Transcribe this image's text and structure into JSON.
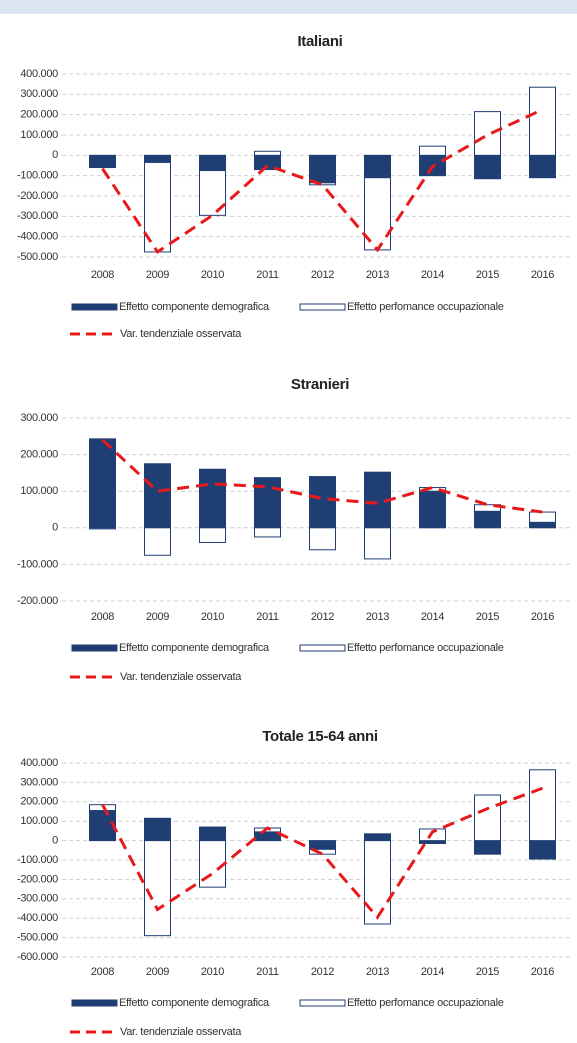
{
  "chart_data": [
    {
      "type": "bar",
      "title": "Italiani",
      "categories": [
        "2008",
        "2009",
        "2010",
        "2011",
        "2012",
        "2013",
        "2014",
        "2015",
        "2016"
      ],
      "series": [
        {
          "name": "Effetto componente demografica",
          "type": "bar",
          "color": "#1f3f74",
          "values": [
            -60000,
            -35000,
            -75000,
            -70000,
            -135000,
            -110000,
            -100000,
            -115000,
            -110000
          ]
        },
        {
          "name": "Effetto perfomance occupazionale",
          "type": "bar",
          "color": "#ffffff",
          "values": [
            0,
            -440000,
            -220000,
            20000,
            -10000,
            -355000,
            45000,
            215000,
            335000
          ]
        },
        {
          "name": "Var. tendenziale osservata",
          "type": "line",
          "color": "#e8191b",
          "values": [
            -65000,
            -475000,
            -295000,
            -50000,
            -145000,
            -465000,
            -55000,
            100000,
            225000
          ]
        }
      ],
      "ylim": [
        -500000,
        400000
      ],
      "yticks": [
        {
          "value": -500000,
          "label": "-500.000"
        },
        {
          "value": -400000,
          "label": "-400.000"
        },
        {
          "value": -300000,
          "label": "-300.000"
        },
        {
          "value": -200000,
          "label": "-200.000"
        },
        {
          "value": -100000,
          "label": "-100.000"
        },
        0,
        {
          "value": 100000,
          "label": "100.000"
        },
        {
          "value": 200000,
          "label": "200.000"
        },
        {
          "value": 300000,
          "label": "300.000"
        },
        {
          "value": 400000,
          "label": "400.000"
        }
      ],
      "grid": true
    },
    {
      "type": "bar",
      "title": "Stranieri",
      "categories": [
        "2008",
        "2009",
        "2010",
        "2011",
        "2012",
        "2013",
        "2014",
        "2015",
        "2016"
      ],
      "series": [
        {
          "name": "Effetto componente demografica",
          "type": "bar",
          "color": "#1f3f74",
          "values": [
            243000,
            175000,
            160000,
            137000,
            140000,
            152000,
            100000,
            45000,
            15000
          ]
        },
        {
          "name": "Effetto perfomance occupazionale",
          "type": "bar",
          "color": "#ffffff",
          "values": [
            -3000,
            -75000,
            -40000,
            -25000,
            -60000,
            -85000,
            10000,
            18000,
            28000
          ]
        },
        {
          "name": "Var. tendenziale osservata",
          "type": "line",
          "color": "#e8191b",
          "values": [
            240000,
            100000,
            120000,
            112000,
            80000,
            67000,
            110000,
            63000,
            43000
          ]
        }
      ],
      "ylim": [
        -200000,
        300000
      ],
      "yticks": [
        {
          "value": -200000,
          "label": "-200.000"
        },
        {
          "value": -100000,
          "label": "-100.000"
        },
        0,
        {
          "value": 100000,
          "label": "100.000"
        },
        {
          "value": 200000,
          "label": "200.000"
        },
        {
          "value": 300000,
          "label": "300.000"
        }
      ],
      "grid": true
    },
    {
      "type": "bar",
      "title": "Totale 15-64 anni",
      "categories": [
        "2008",
        "2009",
        "2010",
        "2011",
        "2012",
        "2013",
        "2014",
        "2015",
        "2016"
      ],
      "series": [
        {
          "name": "Effetto componente demografica",
          "type": "bar",
          "color": "#1f3f74",
          "values": [
            155000,
            115000,
            70000,
            45000,
            -45000,
            35000,
            -15000,
            -70000,
            -95000
          ]
        },
        {
          "name": "Effetto perfomance occupazionale",
          "type": "bar",
          "color": "#ffffff",
          "values": [
            30000,
            -490000,
            -240000,
            20000,
            -25000,
            -430000,
            60000,
            235000,
            365000
          ]
        },
        {
          "name": "Var. tendenziale osservata",
          "type": "line",
          "color": "#e8191b",
          "values": [
            185000,
            -355000,
            -170000,
            65000,
            -70000,
            -395000,
            45000,
            165000,
            270000
          ]
        }
      ],
      "ylim": [
        -600000,
        400000
      ],
      "yticks": [
        {
          "value": -600000,
          "label": "-600.000"
        },
        {
          "value": -500000,
          "label": "-500.000"
        },
        {
          "value": -400000,
          "label": "-400.000"
        },
        {
          "value": -300000,
          "label": "-300.000"
        },
        {
          "value": -200000,
          "label": "-200.000"
        },
        {
          "value": -100000,
          "label": "-100.000"
        },
        0,
        {
          "value": 100000,
          "label": "100.000"
        },
        {
          "value": 200000,
          "label": "200.000"
        },
        {
          "value": 300000,
          "label": "300.000"
        },
        {
          "value": 400000,
          "label": "400.000"
        }
      ],
      "grid": true
    }
  ]
}
